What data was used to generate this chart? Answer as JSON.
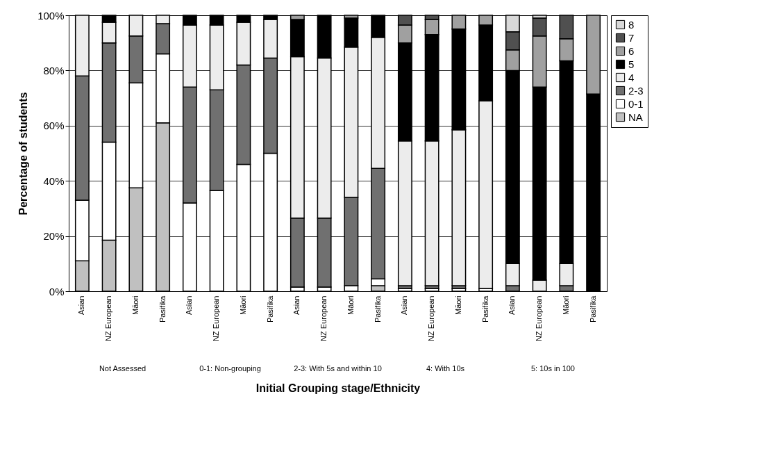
{
  "chart_data": {
    "type": "bar",
    "stacked": true,
    "xlabel": "Initial Grouping stage/Ethnicity",
    "ylabel": "Percentage of students",
    "categories": [
      "Asian",
      "NZ European",
      "Māori",
      "Pasifika",
      "Asian",
      "NZ European",
      "Māori",
      "Pasifika",
      "Asian",
      "NZ European",
      "Māori",
      "Pasifika",
      "Asian",
      "NZ European",
      "Māori",
      "Pasifika",
      "Asian",
      "NZ European",
      "Māori",
      "Pasifika"
    ],
    "annotations": [
      "Not Assessed",
      "0-1: Non-grouping",
      "2-3: With 5s and within 10",
      "4: With 10s",
      "5: 10s in 100"
    ],
    "series": [
      {
        "name": "NA",
        "color": "#c0c0c0",
        "values": [
          11,
          18.5,
          37.5,
          61,
          null,
          null,
          null,
          null,
          null,
          null,
          null,
          2,
          null,
          null,
          null,
          null,
          null,
          null,
          null,
          null
        ]
      },
      {
        "name": "0-1",
        "color": "#ffffff",
        "values": [
          22,
          35.5,
          38,
          25,
          32,
          36.5,
          46,
          50,
          1.5,
          1.5,
          2,
          2.5,
          1,
          1,
          1,
          1,
          null,
          null,
          null,
          null
        ]
      },
      {
        "name": "2-3",
        "color": "#707070",
        "values": [
          45,
          36,
          17,
          11,
          42,
          36.5,
          36,
          34.5,
          25,
          25,
          32,
          40,
          1,
          1,
          1,
          null,
          2,
          null,
          2,
          null
        ]
      },
      {
        "name": "4",
        "color": "#ececec",
        "values": [
          22,
          7.5,
          7.5,
          3,
          22.5,
          23.5,
          15.5,
          14,
          58.5,
          58,
          54.5,
          47.5,
          52.5,
          52.5,
          56.5,
          68,
          8,
          4,
          8,
          null
        ]
      },
      {
        "name": "5",
        "color": "#000000",
        "values": [
          null,
          2.5,
          null,
          null,
          3.5,
          3.5,
          2.5,
          1.5,
          13.5,
          15.5,
          10.5,
          8,
          35.5,
          38.5,
          36.5,
          27.5,
          70,
          70,
          73.5,
          71.5
        ]
      },
      {
        "name": "6",
        "color": "#a0a0a0",
        "values": [
          null,
          null,
          null,
          null,
          null,
          null,
          null,
          null,
          1.5,
          null,
          1,
          null,
          6.5,
          5.5,
          5,
          3.5,
          7.5,
          18.5,
          8,
          28.5
        ]
      },
      {
        "name": "7",
        "color": "#505050",
        "values": [
          null,
          null,
          null,
          null,
          null,
          null,
          null,
          null,
          null,
          null,
          null,
          null,
          3.5,
          1.5,
          null,
          null,
          6.5,
          6.5,
          8.5,
          null
        ]
      },
      {
        "name": "8",
        "color": "#d8d8d8",
        "values": [
          null,
          null,
          null,
          null,
          null,
          null,
          null,
          null,
          null,
          null,
          null,
          null,
          null,
          null,
          null,
          null,
          6,
          1,
          null,
          null
        ]
      }
    ],
    "ylim": [
      0,
      100
    ],
    "yticks": [
      {
        "value": 0,
        "label": "0%"
      },
      {
        "value": 20,
        "label": "20%"
      },
      {
        "value": 40,
        "label": "40%"
      },
      {
        "value": 60,
        "label": "60%"
      },
      {
        "value": 80,
        "label": "80%"
      },
      {
        "value": 100,
        "label": "100%"
      }
    ],
    "grid": true,
    "legend": "right"
  }
}
